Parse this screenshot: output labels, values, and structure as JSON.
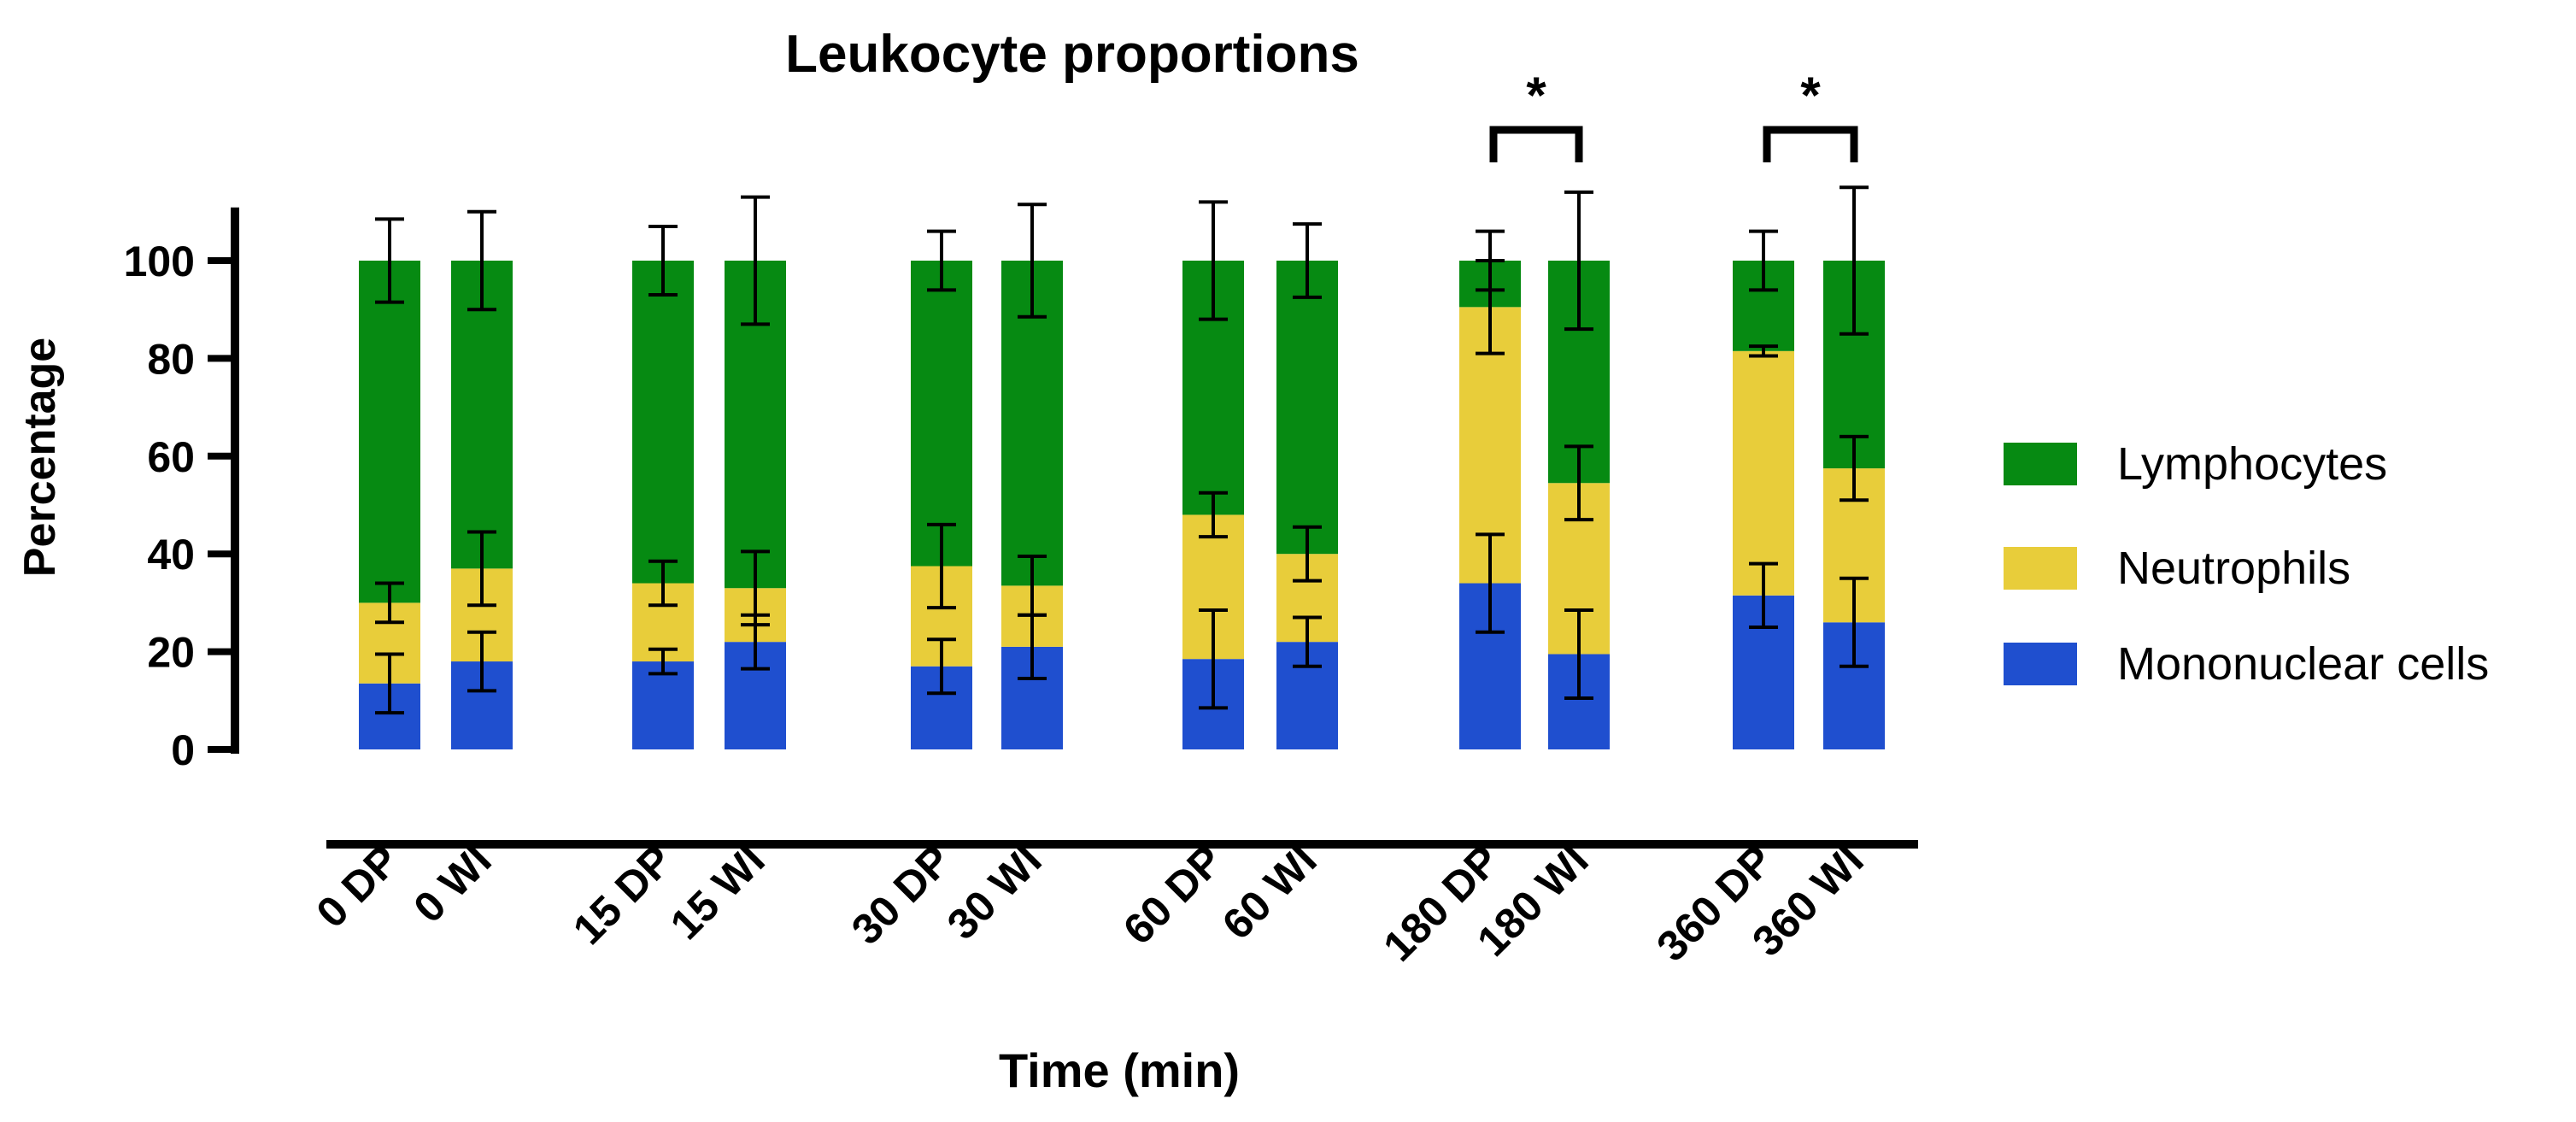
{
  "chart_data": {
    "type": "bar",
    "stacked": true,
    "title": "Leukocyte proportions",
    "xlabel": "Time (min)",
    "ylabel": "Percentage",
    "ylim": [
      0,
      110
    ],
    "yticks": [
      0,
      20,
      40,
      60,
      80,
      100
    ],
    "categories": [
      "0 DP",
      "0 WI",
      "15 DP",
      "15 WI",
      "30 DP",
      "30 WI",
      "60 DP",
      "60 WI",
      "180 DP",
      "180 WI",
      "360 DP",
      "360 WI"
    ],
    "series": [
      {
        "name": "Mononuclear cells",
        "color": "#1f4fcf",
        "values": [
          13.5,
          18,
          18,
          22,
          17,
          21,
          18.5,
          22,
          34,
          19.5,
          31.5,
          26
        ],
        "error": [
          6,
          6,
          2.5,
          5.5,
          5.5,
          6.5,
          10,
          5,
          10,
          9,
          6.5,
          9
        ]
      },
      {
        "name": "Neutrophils",
        "color": "#e8cd3a",
        "values": [
          16.5,
          19,
          16,
          11,
          20.5,
          12.5,
          29.5,
          18,
          56.5,
          35,
          50,
          31.5
        ],
        "error": [
          4,
          7.5,
          4.5,
          7.5,
          8.5,
          6,
          4.5,
          5.5,
          9.5,
          7.5,
          1,
          6.5
        ]
      },
      {
        "name": "Lymphocytes",
        "color": "#068a12",
        "values": [
          70,
          63,
          66,
          67,
          62.5,
          66.5,
          52,
          60,
          9.5,
          45.5,
          18.5,
          42.5
        ],
        "error": [
          8.5,
          10,
          7,
          13,
          6,
          11.5,
          12,
          7.5,
          6,
          14,
          6,
          15
        ]
      }
    ],
    "significance": [
      {
        "pair": [
          "180 DP",
          "180 WI"
        ],
        "label": "*"
      },
      {
        "pair": [
          "360 DP",
          "360 WI"
        ],
        "label": "*"
      }
    ],
    "legend_position": "right"
  }
}
